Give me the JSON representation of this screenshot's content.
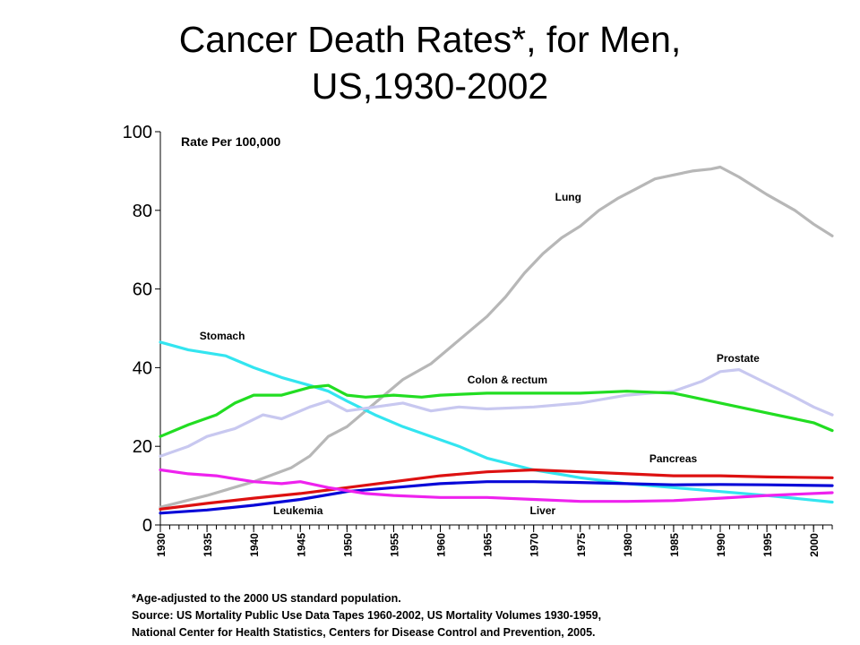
{
  "title": {
    "line1": "Cancer Death Rates*, for Men,",
    "line2": "US,1930-2002"
  },
  "footnote": "*Age-adjusted to the 2000 US standard population.",
  "source_line1": "Source:  US Mortality Public Use Data Tapes 1960-2002, US Mortality Volumes 1930-1959,",
  "source_line2": "National Center for Health Statistics, Centers for Disease Control and Prevention, 2005.",
  "chart_data": {
    "type": "line",
    "title": "Cancer Death Rates*, for Men, US,1930-2002",
    "ylabel": "Rate Per 100,000",
    "xlabel": "",
    "xlim": [
      1930,
      2002
    ],
    "ylim": [
      0,
      100
    ],
    "yticks": [
      0,
      20,
      40,
      60,
      80,
      100
    ],
    "xticks": [
      1930,
      1935,
      1940,
      1945,
      1950,
      1955,
      1960,
      1965,
      1970,
      1975,
      1980,
      1985,
      1990,
      1995,
      2000
    ],
    "grid": false,
    "legend": "none",
    "series": [
      {
        "name": "Lung",
        "color": "#b7b7b7",
        "x": [
          1930,
          1935,
          1940,
          1944,
          1946,
          1948,
          1950,
          1953,
          1956,
          1959,
          1962,
          1965,
          1967,
          1969,
          1971,
          1973,
          1975,
          1977,
          1979,
          1981,
          1983,
          1985,
          1987,
          1989,
          1990,
          1992,
          1995,
          1998,
          2000,
          2002
        ],
        "y": [
          4.5,
          7.5,
          11,
          14.5,
          17.5,
          22.5,
          25,
          31,
          37,
          41,
          47,
          53,
          58,
          64,
          69,
          73,
          76,
          80,
          83,
          85.5,
          88,
          89,
          90,
          90.5,
          91,
          88.5,
          84,
          80,
          76.5,
          73.5
        ]
      },
      {
        "name": "Stomach",
        "color": "#33e5f0",
        "x": [
          1930,
          1933,
          1937,
          1940,
          1943,
          1946,
          1948,
          1950,
          1953,
          1956,
          1959,
          1962,
          1965,
          1970,
          1975,
          1980,
          1985,
          1990,
          1995,
          2002
        ],
        "y": [
          46.5,
          44.5,
          43,
          40,
          37.5,
          35.5,
          34,
          31.5,
          28,
          25,
          22.5,
          20,
          17,
          14,
          12,
          10.5,
          9.5,
          8.5,
          7.5,
          5.8
        ]
      },
      {
        "name": "Prostate",
        "color": "#c8c8f0",
        "x": [
          1930,
          1933,
          1935,
          1938,
          1941,
          1943,
          1946,
          1948,
          1950,
          1953,
          1956,
          1959,
          1962,
          1965,
          1970,
          1975,
          1980,
          1985,
          1988,
          1990,
          1992,
          1995,
          1998,
          2000,
          2002
        ],
        "y": [
          17.5,
          20,
          22.5,
          24.5,
          28,
          27,
          30,
          31.5,
          29,
          30,
          31,
          29,
          30,
          29.5,
          30,
          31,
          33,
          34,
          36.5,
          39,
          39.5,
          36,
          32.5,
          30,
          28
        ]
      },
      {
        "name": "Colon & rectum",
        "color": "#22dd22",
        "x": [
          1930,
          1933,
          1936,
          1938,
          1940,
          1943,
          1946,
          1948,
          1950,
          1952,
          1955,
          1958,
          1960,
          1965,
          1970,
          1975,
          1980,
          1985,
          1990,
          1995,
          2000,
          2002
        ],
        "y": [
          22.5,
          25.5,
          28,
          31,
          33,
          33,
          35,
          35.5,
          33,
          32.5,
          33,
          32.5,
          33,
          33.5,
          33.5,
          33.5,
          34,
          33.5,
          31,
          28.5,
          26,
          24
        ]
      },
      {
        "name": "Pancreas",
        "color": "#dd1111",
        "x": [
          1930,
          1935,
          1940,
          1945,
          1950,
          1955,
          1960,
          1965,
          1970,
          1975,
          1980,
          1985,
          1990,
          1995,
          2002
        ],
        "y": [
          4,
          5.5,
          6.8,
          8,
          9.5,
          11,
          12.5,
          13.5,
          14,
          13.5,
          13,
          12.5,
          12.5,
          12.2,
          12
        ]
      },
      {
        "name": "Leukemia",
        "color": "#0808d8",
        "x": [
          1930,
          1935,
          1940,
          1945,
          1950,
          1955,
          1960,
          1965,
          1970,
          1975,
          1980,
          1985,
          1990,
          1995,
          2002
        ],
        "y": [
          3,
          3.8,
          5,
          6.5,
          8.5,
          9.5,
          10.5,
          11,
          11,
          10.8,
          10.5,
          10.2,
          10.3,
          10.2,
          10
        ]
      },
      {
        "name": "Liver",
        "color": "#ee22ee",
        "x": [
          1930,
          1933,
          1936,
          1940,
          1943,
          1945,
          1948,
          1952,
          1955,
          1960,
          1965,
          1970,
          1975,
          1980,
          1985,
          1990,
          1995,
          2002
        ],
        "y": [
          14,
          13,
          12.5,
          11,
          10.5,
          11,
          9.5,
          8,
          7.5,
          7,
          7,
          6.5,
          6,
          6,
          6.2,
          6.8,
          7.5,
          8.2
        ]
      }
    ],
    "labels": [
      {
        "text": "Lung",
        "series": "Lung",
        "x": 1972.3,
        "y": 82.5
      },
      {
        "text": "Stomach",
        "series": "Stomach",
        "x": 1934.2,
        "y": 47.2
      },
      {
        "text": "Prostate",
        "series": "Prostate",
        "x": 1989.6,
        "y": 41.5
      },
      {
        "text": "Colon & rectum",
        "series": "Colon & rectum",
        "x": 1962.9,
        "y": 36.0
      },
      {
        "text": "Pancreas",
        "series": "Pancreas",
        "x": 1982.4,
        "y": 16.0
      },
      {
        "text": "Leukemia",
        "series": "Leukemia",
        "x": 1942.1,
        "y": 2.7
      },
      {
        "text": "Liver",
        "series": "Liver",
        "x": 1969.6,
        "y": 2.7
      }
    ]
  }
}
